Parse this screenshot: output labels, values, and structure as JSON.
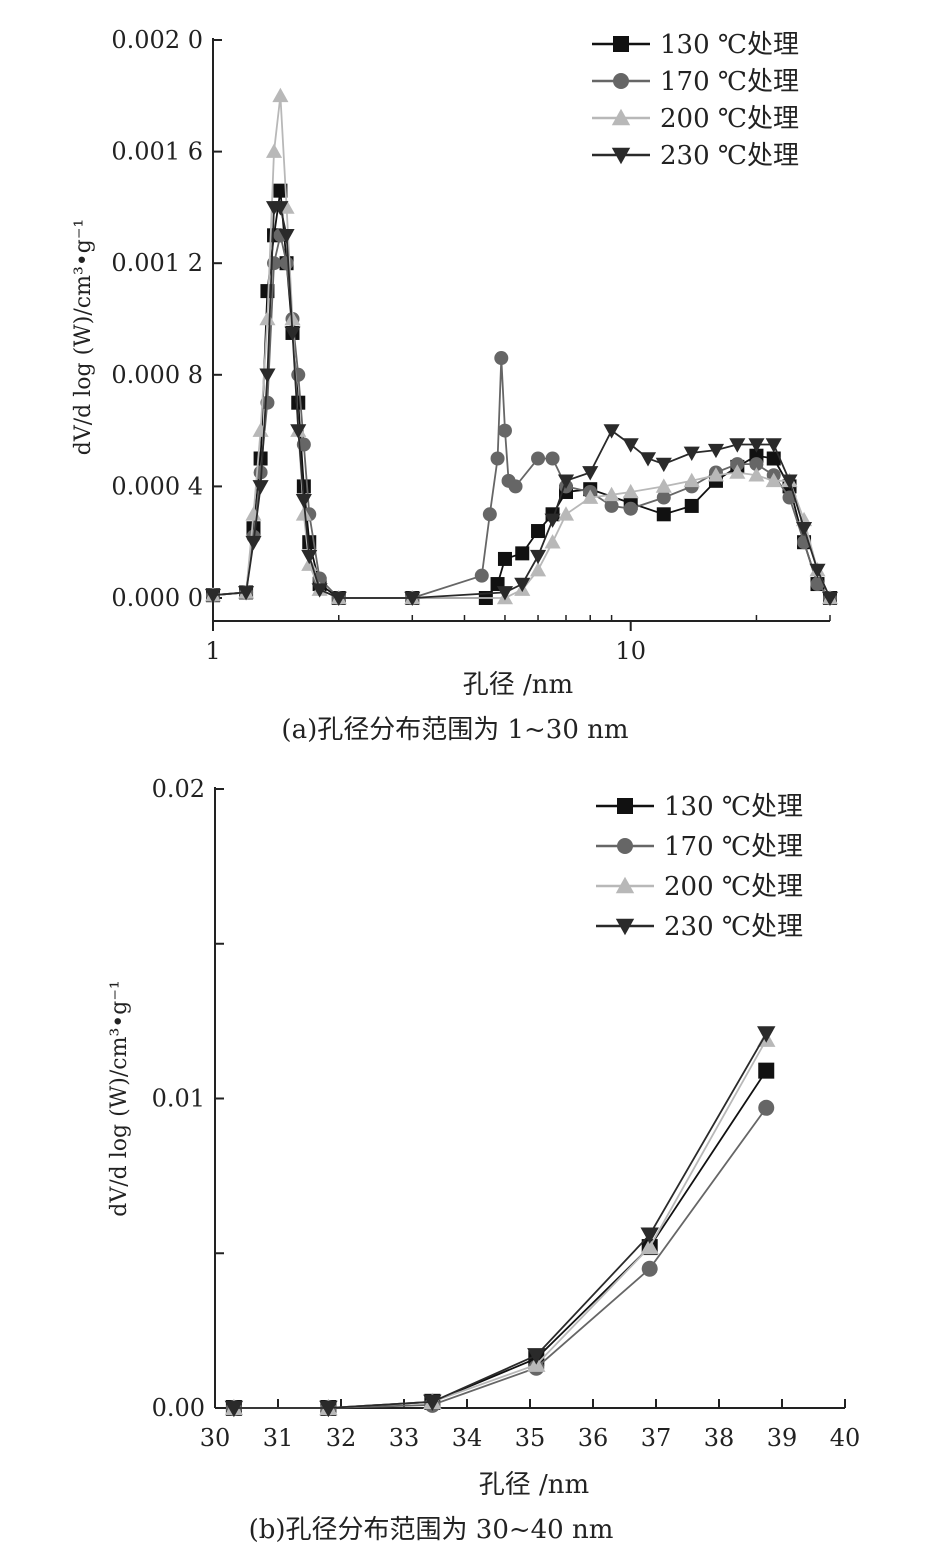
{
  "chart_data": [
    {
      "type": "line",
      "xscale": "log",
      "xlim": [
        1,
        30
      ],
      "ylim": [
        0,
        0.002
      ],
      "xticks": [
        1,
        10
      ],
      "xtick_labels": [
        "1",
        "10"
      ],
      "yticks": [
        0,
        0.0004,
        0.0008,
        0.0012,
        0.0016,
        0.002
      ],
      "ytick_labels": [
        "0.000 0",
        "0.000 4",
        "0.000 8",
        "0.001 2",
        "0.001 6",
        "0.002 0"
      ],
      "xlabel": "孔径 /nm",
      "ylabel": "dV/d log (W)/cm³•g⁻¹",
      "caption": "(a)孔径分布范围为 1~30 nm",
      "legend_position": "top-right",
      "series": [
        {
          "name": "130 ℃处理",
          "marker": "square",
          "color": "#111111",
          "x": [
            1,
            1.2,
            1.25,
            1.3,
            1.35,
            1.4,
            1.45,
            1.5,
            1.55,
            1.6,
            1.65,
            1.7,
            1.8,
            2,
            3,
            4.5,
            4.8,
            5,
            5.5,
            6,
            6.5,
            7,
            8,
            10,
            12,
            14,
            16,
            18,
            20,
            22,
            24,
            26,
            28,
            30
          ],
          "y": [
            1e-05,
            2e-05,
            0.00025,
            0.0005,
            0.0011,
            0.0013,
            0.00146,
            0.0012,
            0.00095,
            0.0007,
            0.0004,
            0.0002,
            5e-05,
            0,
            0,
            0,
            5e-05,
            0.00014,
            0.00016,
            0.00024,
            0.0003,
            0.00038,
            0.00039,
            0.00034,
            0.0003,
            0.00033,
            0.00042,
            0.00047,
            0.00051,
            0.0005,
            0.0004,
            0.0002,
            5e-05,
            0
          ]
        },
        {
          "name": "170 ℃处理",
          "marker": "circle",
          "color": "#666666",
          "x": [
            1,
            1.2,
            1.25,
            1.3,
            1.35,
            1.4,
            1.45,
            1.5,
            1.55,
            1.6,
            1.65,
            1.7,
            1.8,
            2,
            3,
            4.4,
            4.6,
            4.8,
            4.9,
            5,
            5.1,
            5.3,
            6,
            6.5,
            7,
            8,
            9,
            10,
            12,
            14,
            16,
            18,
            20,
            22,
            24,
            26,
            28,
            30
          ],
          "y": [
            1e-05,
            2e-05,
            0.00022,
            0.00045,
            0.0007,
            0.0012,
            0.0013,
            0.0012,
            0.001,
            0.0008,
            0.00055,
            0.0003,
            7e-05,
            0,
            0,
            8e-05,
            0.0003,
            0.0005,
            0.00086,
            0.0006,
            0.00042,
            0.0004,
            0.0005,
            0.0005,
            0.0004,
            0.00038,
            0.00033,
            0.00032,
            0.00036,
            0.0004,
            0.00045,
            0.00048,
            0.00048,
            0.00044,
            0.00036,
            0.0002,
            5e-05,
            0
          ]
        },
        {
          "name": "200 ℃处理",
          "marker": "triangle-up",
          "color": "#b8b8b8",
          "x": [
            1,
            1.2,
            1.25,
            1.3,
            1.35,
            1.4,
            1.45,
            1.5,
            1.55,
            1.6,
            1.65,
            1.7,
            1.8,
            2,
            3,
            5,
            5.5,
            6,
            6.5,
            7,
            8,
            9,
            10,
            12,
            14,
            16,
            18,
            20,
            22,
            24,
            26,
            28,
            30
          ],
          "y": [
            1e-05,
            2e-05,
            0.0003,
            0.0006,
            0.001,
            0.0016,
            0.0018,
            0.0014,
            0.001,
            0.0006,
            0.0003,
            0.00012,
            3e-05,
            0,
            0,
            0,
            3e-05,
            0.0001,
            0.0002,
            0.0003,
            0.00036,
            0.00037,
            0.00038,
            0.0004,
            0.00042,
            0.00044,
            0.00045,
            0.00044,
            0.00042,
            0.00042,
            0.00028,
            0.0001,
            0
          ]
        },
        {
          "name": "230 ℃处理",
          "marker": "triangle-down",
          "color": "#2a2a2a",
          "x": [
            1,
            1.2,
            1.25,
            1.3,
            1.35,
            1.4,
            1.45,
            1.5,
            1.55,
            1.6,
            1.65,
            1.7,
            1.8,
            2,
            3,
            5,
            5.5,
            6,
            6.5,
            7,
            8,
            9,
            10,
            11,
            12,
            14,
            16,
            18,
            20,
            22,
            24,
            26,
            28,
            30
          ],
          "y": [
            1e-05,
            2e-05,
            0.0002,
            0.0004,
            0.0008,
            0.0014,
            0.0014,
            0.0013,
            0.00095,
            0.0006,
            0.00035,
            0.00015,
            3e-05,
            0,
            0,
            2e-05,
            5e-05,
            0.00015,
            0.00028,
            0.00042,
            0.00045,
            0.0006,
            0.00055,
            0.0005,
            0.00048,
            0.00052,
            0.00053,
            0.00055,
            0.00055,
            0.00055,
            0.00042,
            0.00025,
            0.0001,
            0
          ]
        }
      ]
    },
    {
      "type": "line",
      "xlim": [
        30,
        40
      ],
      "ylim": [
        0,
        0.02
      ],
      "xticks": [
        30,
        31,
        32,
        33,
        34,
        35,
        36,
        37,
        38,
        39,
        40
      ],
      "xtick_labels": [
        "30",
        "31",
        "32",
        "33",
        "34",
        "35",
        "36",
        "37",
        "38",
        "39",
        "40"
      ],
      "yticks": [
        0,
        0.005,
        0.01,
        0.015,
        0.02
      ],
      "ytick_labels": [
        "0.00",
        "",
        "0.01",
        "",
        "0.02"
      ],
      "xlabel": "孔径 /nm",
      "ylabel": "dV/d log (W)/cm³•g⁻¹",
      "caption": "(b)孔径分布范围为 30~40 nm",
      "legend_position": "top-right",
      "series": [
        {
          "name": "130 ℃处理",
          "marker": "square",
          "color": "#111111",
          "x": [
            30.3,
            31.8,
            33.45,
            35.1,
            36.9,
            38.75
          ],
          "y": [
            0,
            0,
            0.0002,
            0.0016,
            0.0052,
            0.0109
          ]
        },
        {
          "name": "170 ℃处理",
          "marker": "circle",
          "color": "#666666",
          "x": [
            30.3,
            31.8,
            33.45,
            35.1,
            36.9,
            38.75
          ],
          "y": [
            0,
            0,
            0.0001,
            0.0013,
            0.0045,
            0.0097
          ]
        },
        {
          "name": "200 ℃处理",
          "marker": "triangle-up",
          "color": "#b8b8b8",
          "x": [
            30.3,
            31.8,
            33.45,
            35.1,
            36.9,
            38.75
          ],
          "y": [
            0,
            0,
            0.0002,
            0.0014,
            0.0052,
            0.0119
          ]
        },
        {
          "name": "230 ℃处理",
          "marker": "triangle-down",
          "color": "#2a2a2a",
          "x": [
            30.3,
            31.8,
            33.45,
            35.1,
            36.9,
            38.75
          ],
          "y": [
            0,
            0,
            0.0002,
            0.0017,
            0.0056,
            0.0121
          ]
        }
      ]
    }
  ]
}
